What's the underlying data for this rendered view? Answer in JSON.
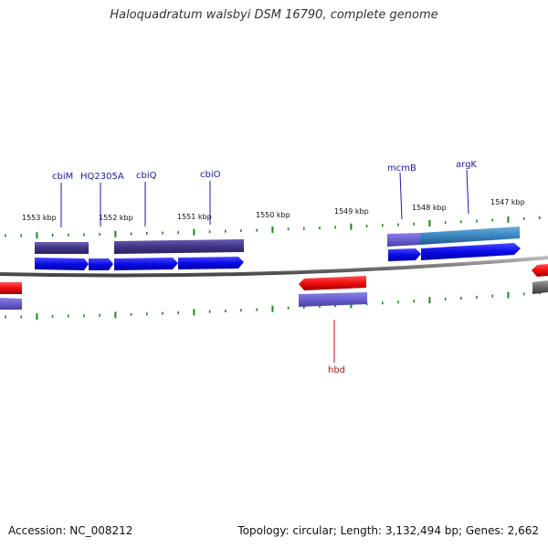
{
  "title": "Haloquadratum walsbyi DSM 16790, complete genome",
  "footer": {
    "accession": "Accession: NC_008212",
    "summary": "Topology: circular; Length: 3,132,494 bp; Genes: 2,662"
  },
  "kbp_ticks": [
    "1553 kbp",
    "1552 kbp",
    "1551 kbp",
    "1550 kbp",
    "1549 kbp",
    "1548 kbp",
    "1547 kbp"
  ],
  "gene_labels": {
    "cbiM": "cbiM",
    "HQ2305A": "HQ2305A",
    "cbiQ": "cbiQ",
    "cbiO": "cbiO",
    "mcmB": "mcmB",
    "argK": "argK",
    "hbd": "hbd"
  },
  "colors": {
    "forward_gene": "#1010e8",
    "reverse_gene": "#ee1111",
    "cog_bar": "#4a3f8c",
    "cog_bar_light": "#6a5fc8",
    "cog_bar_teal": "#3a88c0",
    "cog_bar_grey": "#666666",
    "backbone": "#808080",
    "tick": "#1a8a1a",
    "label_forward": "#1a1aa8",
    "label_reverse": "#b01010"
  }
}
